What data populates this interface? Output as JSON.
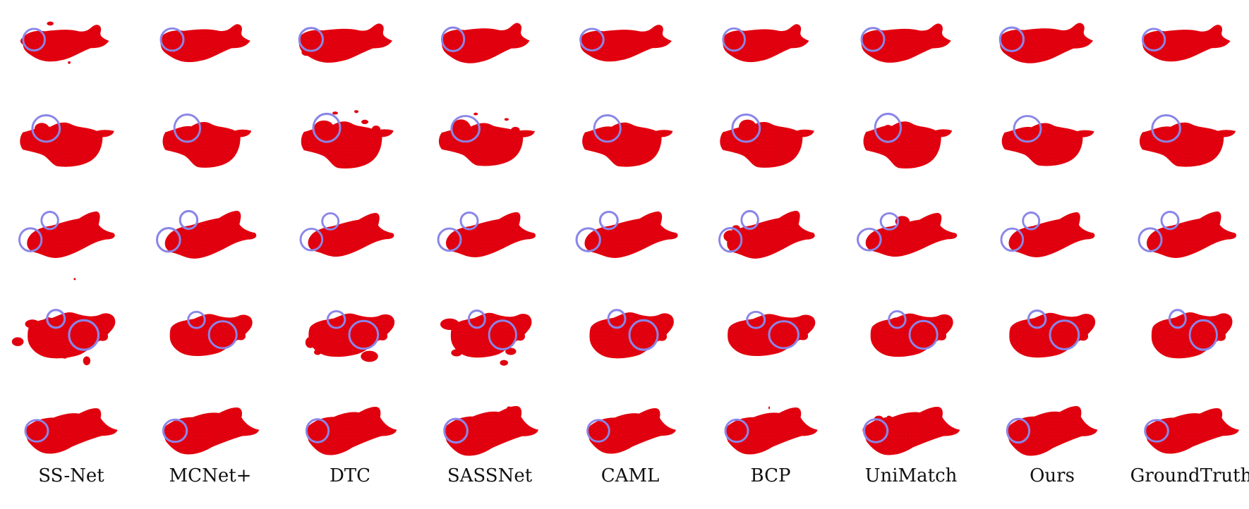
{
  "figure": {
    "rows": 5,
    "methods": [
      "SS-Net",
      "MCNet+",
      "DTC",
      "SASSNet",
      "CAML",
      "BCP",
      "UniMatch",
      "Ours",
      "GroundTruth"
    ]
  },
  "colors": {
    "segmentation": "#e3000f",
    "segmentation_dark": "#9e0008",
    "highlight_circle": "#8a86e8",
    "background": "#ffffff"
  }
}
